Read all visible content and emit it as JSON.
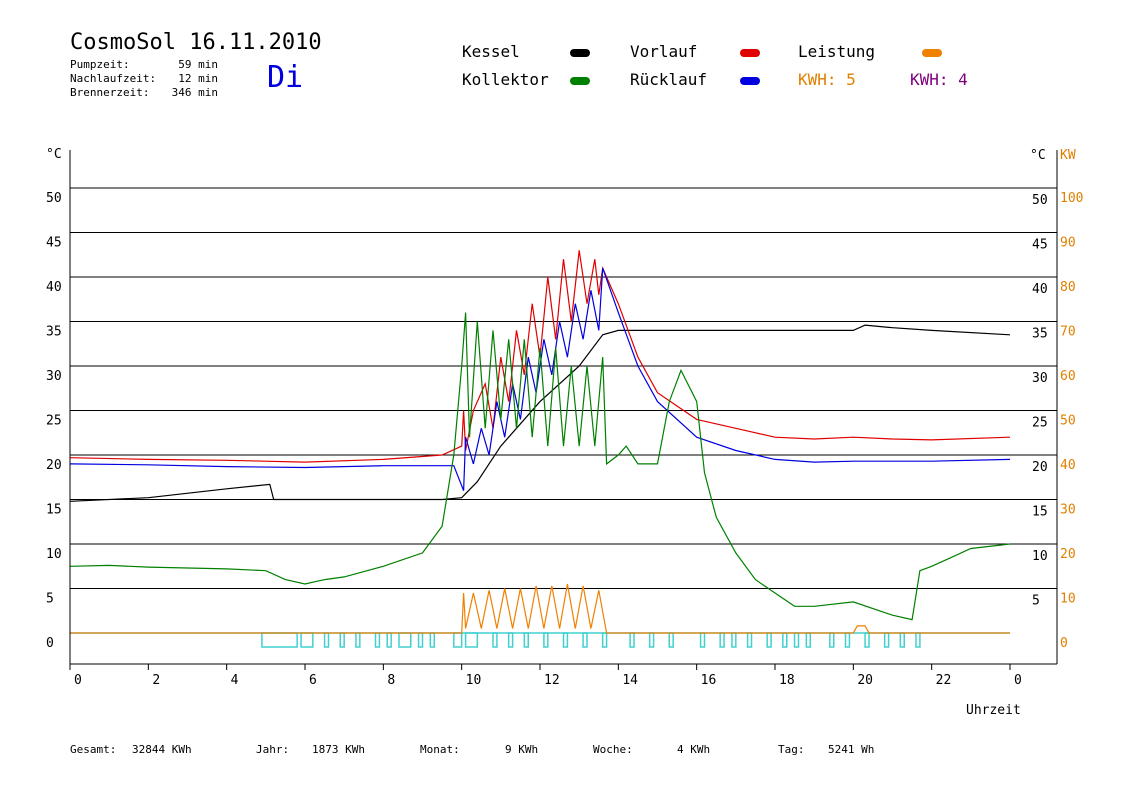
{
  "header": {
    "title": "CosmoSol 16.11.2010",
    "stats": [
      {
        "label": "Pumpzeit:",
        "value": "59 min"
      },
      {
        "label": "Nachlaufzeit:",
        "value": "12 min"
      },
      {
        "label": "Brennerzeit:",
        "value": "346 min"
      }
    ],
    "weekday": "Di"
  },
  "legend": {
    "items": [
      {
        "label": "Kessel",
        "color": "#000000"
      },
      {
        "label": "Vorlauf",
        "color": "#e00000"
      },
      {
        "label": "Leistung",
        "color": "#f08000"
      },
      {
        "label": "Kollektor",
        "color": "#008000"
      },
      {
        "label": "Rücklauf",
        "color": "#0000e0"
      }
    ],
    "kwh": [
      {
        "text": "KWH: 5",
        "color": "#e08000"
      },
      {
        "text": "KWH: 4",
        "color": "#800080"
      }
    ]
  },
  "footer": {
    "items": [
      {
        "label": "Gesamt:",
        "value": "32844 KWh"
      },
      {
        "label": "Jahr:",
        "value": "1873 KWh"
      },
      {
        "label": "Monat:",
        "value": "9 KWh"
      },
      {
        "label": "Woche:",
        "value": "4 KWh"
      },
      {
        "label": "Tag:",
        "value": "5241 Wh"
      }
    ]
  },
  "chart_data": {
    "type": "line",
    "xlabel": "Uhrzeit",
    "ylabel_left": "°C",
    "ylabel_right_temp": "°C",
    "ylabel_right_power": "KW",
    "x_ticks": [
      "0",
      "2",
      "4",
      "6",
      "8",
      "10",
      "12",
      "14",
      "16",
      "18",
      "20",
      "22",
      "0"
    ],
    "xlim": [
      0,
      24
    ],
    "ylim": [
      -3.5,
      52
    ],
    "y_ticks": [
      0,
      5,
      10,
      15,
      20,
      25,
      30,
      35,
      40,
      45,
      50
    ],
    "y_ticks_right_power": [
      0,
      10,
      20,
      30,
      40,
      50,
      60,
      70,
      80,
      90,
      100
    ],
    "grid": true,
    "series": [
      {
        "name": "Kessel",
        "color": "#000000",
        "points": [
          [
            0,
            14.8
          ],
          [
            2,
            15.2
          ],
          [
            4,
            16.2
          ],
          [
            5.1,
            16.7
          ],
          [
            5.2,
            15
          ],
          [
            6,
            15
          ],
          [
            8,
            15
          ],
          [
            9.5,
            15
          ],
          [
            10,
            15.2
          ],
          [
            10.4,
            17
          ],
          [
            11,
            21
          ],
          [
            12,
            26
          ],
          [
            13,
            30
          ],
          [
            13.6,
            33.5
          ],
          [
            14,
            34
          ],
          [
            16,
            34
          ],
          [
            18,
            34
          ],
          [
            20,
            34
          ],
          [
            20.3,
            34.6
          ],
          [
            21,
            34.3
          ],
          [
            22,
            34
          ],
          [
            24,
            33.5
          ]
        ]
      },
      {
        "name": "Vorlauf",
        "color": "#e00000",
        "points": [
          [
            0,
            19.7
          ],
          [
            2,
            19.5
          ],
          [
            4,
            19.4
          ],
          [
            6,
            19.2
          ],
          [
            8,
            19.5
          ],
          [
            9.5,
            20
          ],
          [
            10,
            21
          ],
          [
            10.05,
            25
          ],
          [
            10.1,
            20.5
          ],
          [
            10.3,
            25
          ],
          [
            10.6,
            28
          ],
          [
            10.8,
            23
          ],
          [
            11,
            31
          ],
          [
            11.2,
            26
          ],
          [
            11.4,
            34
          ],
          [
            11.6,
            29
          ],
          [
            11.8,
            37
          ],
          [
            12,
            31
          ],
          [
            12.2,
            40
          ],
          [
            12.4,
            33
          ],
          [
            12.6,
            42
          ],
          [
            12.8,
            35
          ],
          [
            13,
            43
          ],
          [
            13.2,
            37
          ],
          [
            13.4,
            42
          ],
          [
            13.5,
            38
          ],
          [
            13.6,
            41
          ],
          [
            14,
            37
          ],
          [
            14.5,
            31
          ],
          [
            15,
            27
          ],
          [
            16,
            24
          ],
          [
            17,
            23
          ],
          [
            18,
            22
          ],
          [
            19,
            21.8
          ],
          [
            20,
            22
          ],
          [
            21,
            21.8
          ],
          [
            22,
            21.7
          ],
          [
            24,
            22
          ]
        ]
      },
      {
        "name": "Rücklauf",
        "color": "#0000e0",
        "points": [
          [
            0,
            19
          ],
          [
            2,
            18.9
          ],
          [
            4,
            18.7
          ],
          [
            6,
            18.6
          ],
          [
            8,
            18.8
          ],
          [
            9.8,
            18.8
          ],
          [
            10.05,
            16
          ],
          [
            10.1,
            22
          ],
          [
            10.3,
            19
          ],
          [
            10.5,
            23
          ],
          [
            10.7,
            20
          ],
          [
            10.9,
            26
          ],
          [
            11.1,
            22
          ],
          [
            11.3,
            28
          ],
          [
            11.5,
            24
          ],
          [
            11.7,
            31
          ],
          [
            11.9,
            27
          ],
          [
            12.1,
            33
          ],
          [
            12.3,
            29
          ],
          [
            12.5,
            35
          ],
          [
            12.7,
            31
          ],
          [
            12.9,
            37
          ],
          [
            13.1,
            33
          ],
          [
            13.3,
            38.5
          ],
          [
            13.5,
            34
          ],
          [
            13.6,
            41
          ],
          [
            14,
            36
          ],
          [
            14.5,
            30
          ],
          [
            15,
            26
          ],
          [
            16,
            22
          ],
          [
            17,
            20.5
          ],
          [
            18,
            19.5
          ],
          [
            19,
            19.2
          ],
          [
            20,
            19.3
          ],
          [
            22,
            19.3
          ],
          [
            24,
            19.5
          ]
        ]
      },
      {
        "name": "Kollektor",
        "color": "#008000",
        "points": [
          [
            0,
            7.5
          ],
          [
            1,
            7.6
          ],
          [
            2,
            7.4
          ],
          [
            3,
            7.3
          ],
          [
            4,
            7.2
          ],
          [
            5,
            7
          ],
          [
            5.5,
            6
          ],
          [
            6,
            5.5
          ],
          [
            6.5,
            6
          ],
          [
            7,
            6.3
          ],
          [
            8,
            7.5
          ],
          [
            9,
            9
          ],
          [
            9.5,
            12
          ],
          [
            9.8,
            20
          ],
          [
            10,
            30
          ],
          [
            10.1,
            36
          ],
          [
            10.2,
            22
          ],
          [
            10.4,
            35
          ],
          [
            10.6,
            23
          ],
          [
            10.8,
            34
          ],
          [
            11,
            24
          ],
          [
            11.2,
            33
          ],
          [
            11.4,
            23
          ],
          [
            11.6,
            33
          ],
          [
            11.8,
            22
          ],
          [
            12,
            32
          ],
          [
            12.2,
            21
          ],
          [
            12.4,
            32
          ],
          [
            12.6,
            21
          ],
          [
            12.8,
            30
          ],
          [
            13,
            21
          ],
          [
            13.2,
            30
          ],
          [
            13.4,
            21
          ],
          [
            13.6,
            31
          ],
          [
            13.7,
            19
          ],
          [
            14,
            20
          ],
          [
            14.2,
            21
          ],
          [
            14.5,
            19
          ],
          [
            15,
            19
          ],
          [
            15.3,
            26
          ],
          [
            15.6,
            29.5
          ],
          [
            16,
            26
          ],
          [
            16.2,
            18
          ],
          [
            16.5,
            13
          ],
          [
            17,
            9
          ],
          [
            17.5,
            6
          ],
          [
            18,
            4.5
          ],
          [
            18.5,
            3
          ],
          [
            19,
            3
          ],
          [
            20,
            3.5
          ],
          [
            21,
            2
          ],
          [
            21.5,
            1.5
          ],
          [
            21.7,
            7
          ],
          [
            22,
            7.5
          ],
          [
            22.5,
            8.5
          ],
          [
            23,
            9.5
          ],
          [
            24,
            10
          ]
        ]
      },
      {
        "name": "Leistung",
        "color": "#f08000",
        "points": [
          [
            0,
            0
          ],
          [
            10,
            0
          ],
          [
            10.05,
            4.5
          ],
          [
            10.1,
            0.5
          ],
          [
            10.3,
            4.5
          ],
          [
            10.5,
            0.5
          ],
          [
            10.7,
            4.8
          ],
          [
            10.9,
            0.5
          ],
          [
            11.1,
            5
          ],
          [
            11.3,
            0.5
          ],
          [
            11.5,
            5
          ],
          [
            11.7,
            0.5
          ],
          [
            11.9,
            5.3
          ],
          [
            12.1,
            0.5
          ],
          [
            12.3,
            5.3
          ],
          [
            12.5,
            0.5
          ],
          [
            12.7,
            5.5
          ],
          [
            12.9,
            0.5
          ],
          [
            13.1,
            5.3
          ],
          [
            13.3,
            0.5
          ],
          [
            13.5,
            4.8
          ],
          [
            13.7,
            0
          ],
          [
            14,
            0
          ],
          [
            20,
            0
          ],
          [
            20.1,
            0.8
          ],
          [
            20.3,
            0.8
          ],
          [
            20.4,
            0
          ],
          [
            24,
            0
          ]
        ]
      }
    ],
    "pump_intervals": [
      [
        4.9,
        5.8
      ],
      [
        5.9,
        6.2
      ],
      [
        6.5,
        6.6
      ],
      [
        6.9,
        7
      ],
      [
        7.3,
        7.4
      ],
      [
        7.8,
        7.9
      ],
      [
        8.1,
        8.2
      ],
      [
        8.4,
        8.7
      ],
      [
        8.9,
        9
      ],
      [
        9.2,
        9.3
      ],
      [
        9.8,
        10
      ],
      [
        10.1,
        10.4
      ],
      [
        10.8,
        10.9
      ],
      [
        11.2,
        11.3
      ],
      [
        11.6,
        11.7
      ],
      [
        12.1,
        12.2
      ],
      [
        12.6,
        12.7
      ],
      [
        13.1,
        13.2
      ],
      [
        13.6,
        13.7
      ],
      [
        14.3,
        14.4
      ],
      [
        14.8,
        14.9
      ],
      [
        15.3,
        15.4
      ],
      [
        16.1,
        16.2
      ],
      [
        16.6,
        16.7
      ],
      [
        16.9,
        17
      ],
      [
        17.3,
        17.4
      ],
      [
        17.8,
        17.9
      ],
      [
        18.2,
        18.3
      ],
      [
        18.5,
        18.6
      ],
      [
        18.8,
        18.9
      ],
      [
        19.4,
        19.5
      ],
      [
        19.8,
        19.9
      ],
      [
        20.3,
        20.4
      ],
      [
        20.8,
        20.9
      ],
      [
        21.2,
        21.3
      ],
      [
        21.6,
        21.7
      ]
    ]
  }
}
